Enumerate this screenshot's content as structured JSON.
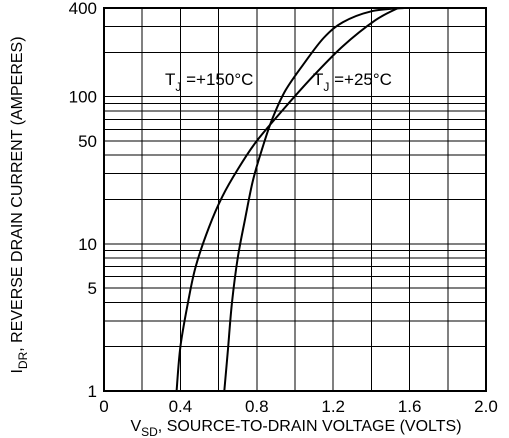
{
  "chart_data": {
    "type": "line",
    "xlabel_main": "V",
    "xlabel_sub": "SD",
    "xlabel_rest": ", SOURCE-TO-DRAIN VOLTAGE (VOLTS)",
    "ylabel_main": "I",
    "ylabel_sub": "DR",
    "ylabel_rest": ", REVERSE DRAIN CURRENT (AMPERES)",
    "xlim": [
      0,
      2.0
    ],
    "ylim": [
      1,
      400
    ],
    "y_scale": "log",
    "grid": true,
    "x_ticks": [
      {
        "value": 0.0,
        "label": "0"
      },
      {
        "value": 0.4,
        "label": "0.4"
      },
      {
        "value": 0.8,
        "label": "0.8"
      },
      {
        "value": 1.2,
        "label": "1.2"
      },
      {
        "value": 1.6,
        "label": "1.6"
      },
      {
        "value": 2.0,
        "label": "2.0"
      }
    ],
    "y_ticks": [
      {
        "value": 1,
        "label": "1"
      },
      {
        "value": 5,
        "label": "5"
      },
      {
        "value": 10,
        "label": "10"
      },
      {
        "value": 50,
        "label": "50"
      },
      {
        "value": 100,
        "label": "100"
      },
      {
        "value": 400,
        "label": "400"
      }
    ],
    "series": [
      {
        "annotation_main": "T",
        "annotation_sub": "J",
        "annotation_rest": " =+150°C",
        "x": [
          0.38,
          0.4,
          0.44,
          0.48,
          0.55,
          0.62,
          0.7,
          0.8,
          0.95,
          1.1,
          1.25,
          1.42,
          1.54
        ],
        "y": [
          1,
          2,
          4,
          7,
          13,
          21,
          32,
          50,
          85,
          140,
          220,
          330,
          400
        ]
      },
      {
        "annotation_main": "T",
        "annotation_sub": "J",
        "annotation_rest": " =+25°C",
        "x": [
          0.63,
          0.65,
          0.67,
          0.7,
          0.74,
          0.78,
          0.83,
          0.88,
          0.95,
          1.05,
          1.15,
          1.25,
          1.4,
          1.57
        ],
        "y": [
          1,
          2,
          4,
          8,
          15,
          27,
          45,
          70,
          110,
          170,
          250,
          320,
          380,
          400
        ]
      }
    ]
  }
}
